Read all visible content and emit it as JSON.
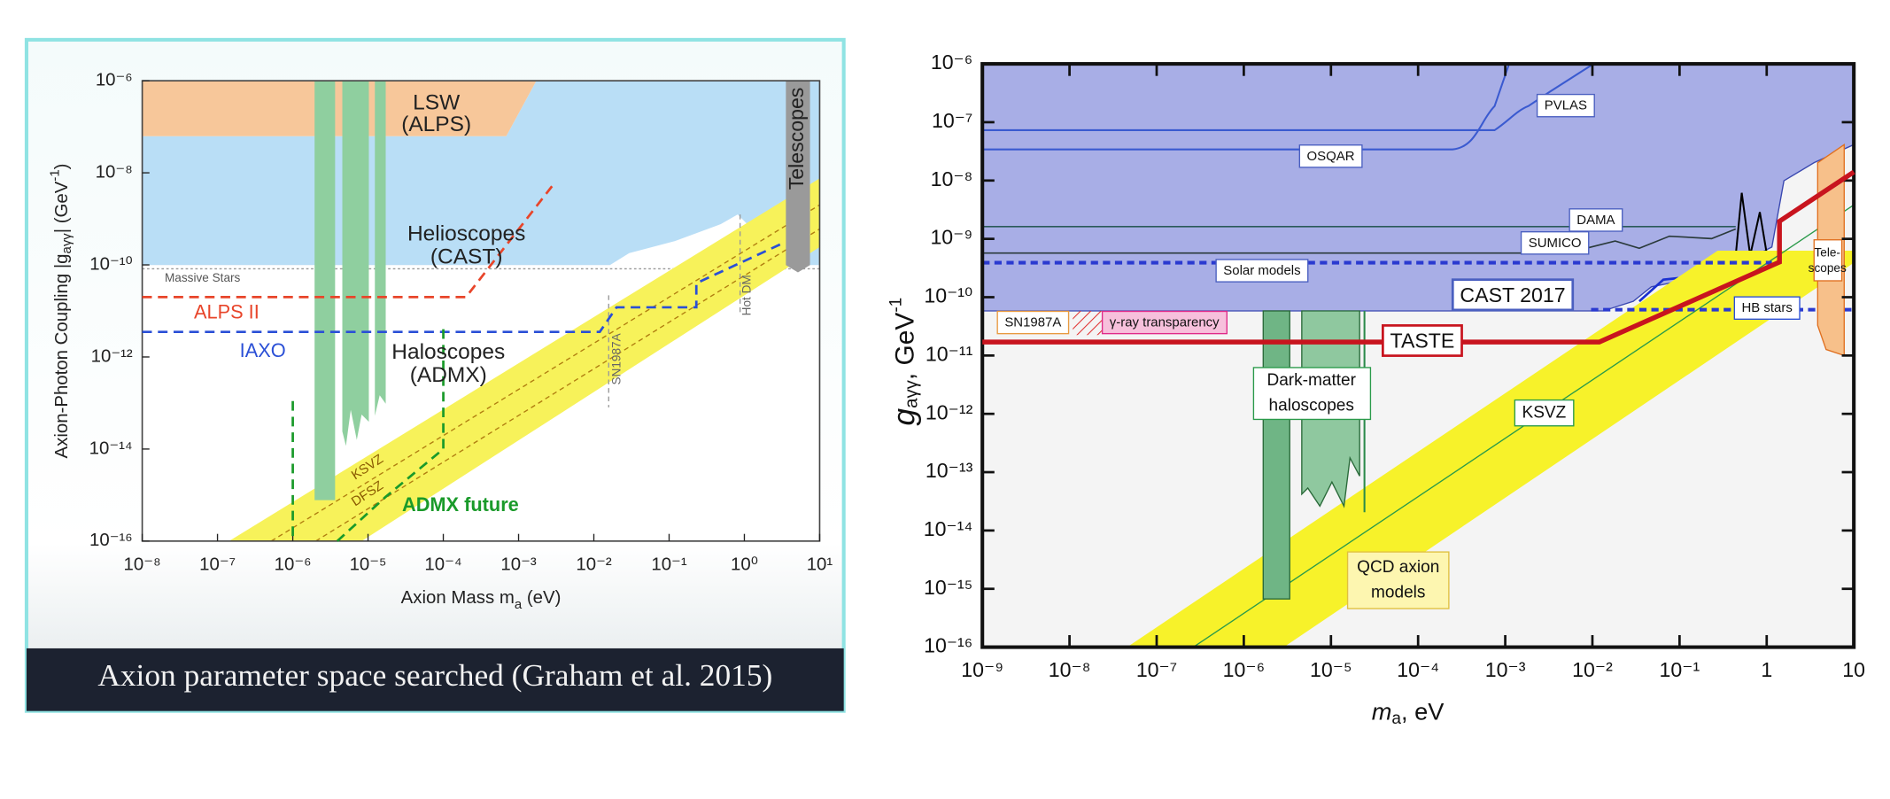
{
  "caption": "Axion parameter space searched (Graham et al. 2015)",
  "chart_data": [
    {
      "type": "line",
      "xscale": "log",
      "yscale": "log",
      "x_label": [
        "Axion Mass m",
        "a",
        " (eV)"
      ],
      "y_label": [
        "Axion-Photon Coupling |g",
        "aγγ",
        "| (GeV",
        "-1",
        ")"
      ],
      "xlim": [
        1e-08,
        10
      ],
      "ylim": [
        1e-16,
        1e-06
      ],
      "xticks": [
        {
          "value": 1e-08,
          "label": "10⁻⁸"
        },
        {
          "value": 1e-07,
          "label": "10⁻⁷"
        },
        {
          "value": 1e-06,
          "label": "10⁻⁶"
        },
        {
          "value": 1e-05,
          "label": "10⁻⁵"
        },
        {
          "value": 0.0001,
          "label": "10⁻⁴"
        },
        {
          "value": 0.001,
          "label": "10⁻³"
        },
        {
          "value": 0.01,
          "label": "10⁻²"
        },
        {
          "value": 0.1,
          "label": "10⁻¹"
        },
        {
          "value": 1,
          "label": "10⁰"
        },
        {
          "value": 10,
          "label": "10¹"
        }
      ],
      "yticks": [
        {
          "value": 1e-16,
          "label": "10⁻¹⁶"
        },
        {
          "value": 1e-14,
          "label": "10⁻¹⁴"
        },
        {
          "value": 1e-12,
          "label": "10⁻¹²"
        },
        {
          "value": 1e-10,
          "label": "10⁻¹⁰"
        },
        {
          "value": 1e-08,
          "label": "10⁻⁸"
        },
        {
          "value": 1e-06,
          "label": "10⁻⁶"
        }
      ],
      "series": [
        {
          "name": "ALPS II",
          "color": "#e8452a",
          "dash": true,
          "x": [
            1e-08,
            0.0002,
            0.003
          ],
          "y": [
            2e-11,
            2e-11,
            6e-09
          ]
        },
        {
          "name": "IAXO",
          "color": "#2a4fd6",
          "dash": true,
          "x": [
            1e-08,
            0.012,
            0.02,
            0.23,
            0.23,
            3.3
          ],
          "y": [
            3.5e-12,
            3.5e-12,
            1.2e-11,
            1.2e-11,
            4e-11,
            3e-10
          ]
        },
        {
          "name": "ADMX future",
          "color": "#1a9a2a",
          "dash": true,
          "x": [
            1e-06,
            1e-06,
            3.9e-06,
            3.9e-06,
            1.7e-05,
            0.0001,
            0.0001
          ],
          "y": [
            1.1e-13,
            1e-16,
            null,
            1e-16,
            9e-16,
            1e-14,
            4e-12
          ]
        }
      ],
      "annotations": [
        "LSW",
        "(ALPS)",
        "Helioscopes",
        "(CAST)",
        "Haloscopes",
        "(ADMX)",
        "Massive Stars",
        "KSVZ",
        "DFSZ",
        "SN1987A",
        "Hot DM",
        "Telescopes"
      ]
    },
    {
      "type": "line",
      "xscale": "log",
      "yscale": "log",
      "x_label": [
        "m",
        "a",
        ", eV"
      ],
      "y_label": [
        "g",
        "aγγ",
        ",  GeV",
        "-1"
      ],
      "xlim": [
        1e-09,
        10
      ],
      "ylim": [
        1e-16,
        1e-06
      ],
      "xticks": [
        {
          "value": 1e-09,
          "label": "10⁻⁹"
        },
        {
          "value": 1e-08,
          "label": "10⁻⁸"
        },
        {
          "value": 1e-07,
          "label": "10⁻⁷"
        },
        {
          "value": 1e-06,
          "label": "10⁻⁶"
        },
        {
          "value": 1e-05,
          "label": "10⁻⁵"
        },
        {
          "value": 0.0001,
          "label": "10⁻⁴"
        },
        {
          "value": 0.001,
          "label": "10⁻³"
        },
        {
          "value": 0.01,
          "label": "10⁻²"
        },
        {
          "value": 0.1,
          "label": "10⁻¹"
        },
        1,
        10
      ],
      "yticks": [
        {
          "value": 1e-16,
          "label": "10⁻¹⁶"
        },
        {
          "value": 1e-15,
          "label": "10⁻¹⁵"
        },
        {
          "value": 1e-14,
          "label": "10⁻¹⁴"
        },
        {
          "value": 1e-13,
          "label": "10⁻¹³"
        },
        {
          "value": 1e-12,
          "label": "10⁻¹²"
        },
        {
          "value": 1e-11,
          "label": "10⁻¹¹"
        },
        {
          "value": 1e-10,
          "label": "10⁻¹⁰"
        },
        {
          "value": 1e-09,
          "label": "10⁻⁹"
        },
        {
          "value": 1e-08,
          "label": "10⁻⁸"
        },
        {
          "value": 1e-07,
          "label": "10⁻⁷"
        },
        {
          "value": 1e-06,
          "label": "10⁻⁶"
        }
      ],
      "series": [
        {
          "name": "TASTE",
          "color": "#c8141e",
          "dash": false,
          "x": [
            1e-09,
            0.012,
            1.4,
            1.4,
            10
          ],
          "y": [
            1.7e-11,
            1.7e-11,
            4e-10,
            2e-09,
            1.4e-08
          ]
        }
      ],
      "annotations": [
        "PVLAS",
        "OSQAR",
        "DAMA",
        "SUMICO",
        "Solar models",
        "CAST 2017",
        "SN1987A",
        "γ-ray transparency",
        "HB stars",
        "Dark-matter",
        "haloscopes",
        "KSVZ",
        "QCD axion",
        "models",
        "Tele-",
        "scopes"
      ]
    }
  ]
}
